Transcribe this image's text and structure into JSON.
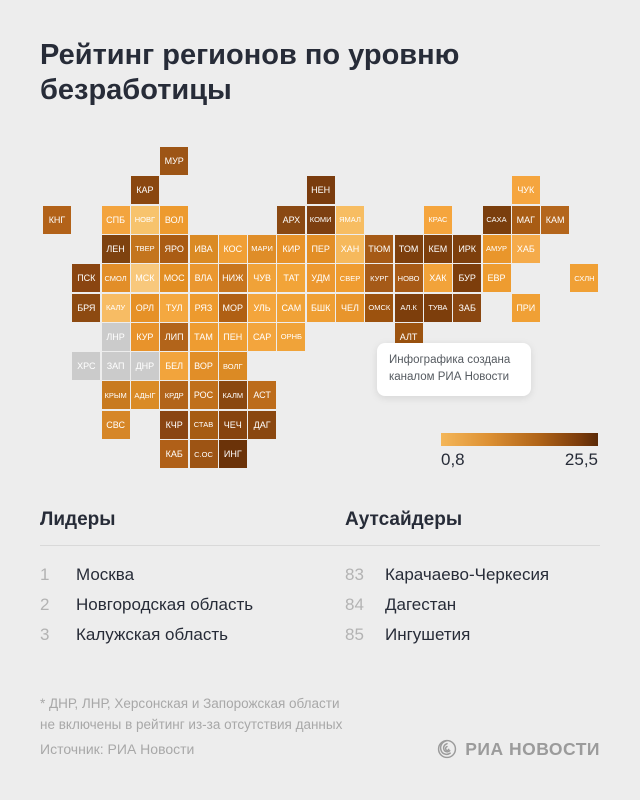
{
  "title": "Рейтинг регионов по уровню безработицы",
  "chart_data": {
    "type": "heatmap",
    "subtype": "tile-cartogram",
    "title": "Рейтинг регионов по уровню безработицы",
    "legend": {
      "min_label": "0,8",
      "max_label": "25,5",
      "range": [
        0.8,
        25.5
      ],
      "gradient": [
        "#f4b658",
        "#5a2a07"
      ],
      "no_data_color": "#cbcbcb"
    },
    "tiles": [
      {
        "label": "МУР",
        "row": 0,
        "col": 4,
        "color": "#9d5516"
      },
      {
        "label": "КАР",
        "row": 1,
        "col": 3,
        "color": "#8a470f"
      },
      {
        "label": "НЕН",
        "row": 1,
        "col": 9,
        "color": "#7a3c0e"
      },
      {
        "label": "ЧУК",
        "row": 1,
        "col": 16,
        "color": "#f5a53e"
      },
      {
        "label": "КНГ",
        "row": 2,
        "col": 0,
        "color": "#b26219"
      },
      {
        "label": "СПБ",
        "row": 2,
        "col": 2,
        "color": "#f3a43e"
      },
      {
        "label": "НОВГ",
        "row": 2,
        "col": 3,
        "color": "#f7c36c"
      },
      {
        "label": "ВОЛ",
        "row": 2,
        "col": 4,
        "color": "#ed9a2e"
      },
      {
        "label": "АРХ",
        "row": 2,
        "col": 8,
        "color": "#8a4913"
      },
      {
        "label": "КОМИ",
        "row": 2,
        "col": 9,
        "color": "#7d3f10"
      },
      {
        "label": "ЯМАЛ",
        "row": 2,
        "col": 10,
        "color": "#f7bd62"
      },
      {
        "label": "КРАС",
        "row": 2,
        "col": 13,
        "color": "#f5a53d"
      },
      {
        "label": "САХА",
        "row": 2,
        "col": 15,
        "color": "#7a3e0d"
      },
      {
        "label": "МАГ",
        "row": 2,
        "col": 16,
        "color": "#a85c14"
      },
      {
        "label": "КАМ",
        "row": 2,
        "col": 17,
        "color": "#b4661c"
      },
      {
        "label": "ЛЕН",
        "row": 3,
        "col": 2,
        "color": "#7e420f"
      },
      {
        "label": "ТВЕР",
        "row": 3,
        "col": 3,
        "color": "#c4751e"
      },
      {
        "label": "ЯРО",
        "row": 3,
        "col": 4,
        "color": "#aa5c14"
      },
      {
        "label": "ИВА",
        "row": 3,
        "col": 5,
        "color": "#da8a24"
      },
      {
        "label": "КОС",
        "row": 3,
        "col": 6,
        "color": "#f09f35"
      },
      {
        "label": "МАРИ",
        "row": 3,
        "col": 7,
        "color": "#df8d28"
      },
      {
        "label": "КИР",
        "row": 3,
        "col": 8,
        "color": "#e8932a"
      },
      {
        "label": "ПЕР",
        "row": 3,
        "col": 9,
        "color": "#e28e26"
      },
      {
        "label": "ХАН",
        "row": 3,
        "col": 10,
        "color": "#f6b95c"
      },
      {
        "label": "ТЮМ",
        "row": 3,
        "col": 11,
        "color": "#a65a16"
      },
      {
        "label": "ТОМ",
        "row": 3,
        "col": 12,
        "color": "#7d3f0d"
      },
      {
        "label": "КЕМ",
        "row": 3,
        "col": 13,
        "color": "#7d3f0d"
      },
      {
        "label": "ИРК",
        "row": 3,
        "col": 14,
        "color": "#7d3f0d"
      },
      {
        "label": "АМУР",
        "row": 3,
        "col": 15,
        "color": "#e9962b"
      },
      {
        "label": "ХАБ",
        "row": 3,
        "col": 16,
        "color": "#f5ab4a"
      },
      {
        "label": "ПСК",
        "row": 4,
        "col": 1,
        "color": "#8a4511"
      },
      {
        "label": "СМОЛ",
        "row": 4,
        "col": 2,
        "color": "#e28e28"
      },
      {
        "label": "МСК",
        "row": 4,
        "col": 3,
        "color": "#f8c87c"
      },
      {
        "label": "МОС",
        "row": 4,
        "col": 4,
        "color": "#e28e23"
      },
      {
        "label": "ВЛА",
        "row": 4,
        "col": 5,
        "color": "#ea9730"
      },
      {
        "label": "НИЖ",
        "row": 4,
        "col": 6,
        "color": "#c8761e"
      },
      {
        "label": "ЧУВ",
        "row": 4,
        "col": 7,
        "color": "#f0a238"
      },
      {
        "label": "ТАТ",
        "row": 4,
        "col": 8,
        "color": "#f2a438"
      },
      {
        "label": "УДМ",
        "row": 4,
        "col": 9,
        "color": "#ec9830"
      },
      {
        "label": "СВЕР",
        "row": 4,
        "col": 10,
        "color": "#ef9c30"
      },
      {
        "label": "КУРГ",
        "row": 4,
        "col": 11,
        "color": "#a55a18"
      },
      {
        "label": "НОВО",
        "row": 4,
        "col": 12,
        "color": "#a75a16"
      },
      {
        "label": "ХАК",
        "row": 4,
        "col": 13,
        "color": "#f2a33a"
      },
      {
        "label": "БУР",
        "row": 4,
        "col": 14,
        "color": "#7d3e0c"
      },
      {
        "label": "ЕВР",
        "row": 4,
        "col": 15,
        "color": "#ee9c30"
      },
      {
        "label": "СХЛН",
        "row": 4,
        "col": 18,
        "color": "#f0a035"
      },
      {
        "label": "БРЯ",
        "row": 5,
        "col": 1,
        "color": "#8d4a11"
      },
      {
        "label": "КАЛУ",
        "row": 5,
        "col": 2,
        "color": "#f7bc64"
      },
      {
        "label": "ОРЛ",
        "row": 5,
        "col": 3,
        "color": "#e69127"
      },
      {
        "label": "ТУЛ",
        "row": 5,
        "col": 4,
        "color": "#f4a840"
      },
      {
        "label": "РЯЗ",
        "row": 5,
        "col": 5,
        "color": "#ed9a2e"
      },
      {
        "label": "МОР",
        "row": 5,
        "col": 6,
        "color": "#b06014"
      },
      {
        "label": "УЛЬ",
        "row": 5,
        "col": 7,
        "color": "#f4a53c"
      },
      {
        "label": "САМ",
        "row": 5,
        "col": 8,
        "color": "#f0a237"
      },
      {
        "label": "БШК",
        "row": 5,
        "col": 9,
        "color": "#ef9f34"
      },
      {
        "label": "ЧЕЛ",
        "row": 5,
        "col": 10,
        "color": "#e8952c"
      },
      {
        "label": "ОМСК",
        "row": 5,
        "col": 11,
        "color": "#9c520e"
      },
      {
        "label": "АЛ.К",
        "row": 5,
        "col": 12,
        "color": "#7d3e0c"
      },
      {
        "label": "ТУВА",
        "row": 5,
        "col": 13,
        "color": "#7d3e0c"
      },
      {
        "label": "ЗАБ",
        "row": 5,
        "col": 14,
        "color": "#8a4711"
      },
      {
        "label": "ПРИ",
        "row": 5,
        "col": 16,
        "color": "#f0a035"
      },
      {
        "label": "ЛНР",
        "row": 6,
        "col": 2,
        "color": "#cbcbcb"
      },
      {
        "label": "КУР",
        "row": 6,
        "col": 3,
        "color": "#e8932b"
      },
      {
        "label": "ЛИП",
        "row": 6,
        "col": 4,
        "color": "#b2641a"
      },
      {
        "label": "ТАМ",
        "row": 6,
        "col": 5,
        "color": "#ee9c31"
      },
      {
        "label": "ПЕН",
        "row": 6,
        "col": 6,
        "color": "#ef9e33"
      },
      {
        "label": "САР",
        "row": 6,
        "col": 7,
        "color": "#f3a53d"
      },
      {
        "label": "ОРНБ",
        "row": 6,
        "col": 8,
        "color": "#f0a339"
      },
      {
        "label": "АЛТ",
        "row": 6,
        "col": 12,
        "color": "#9c5310"
      },
      {
        "label": "ХРС",
        "row": 7,
        "col": 1,
        "color": "#cbcbcb"
      },
      {
        "label": "ЗАП",
        "row": 7,
        "col": 2,
        "color": "#cbcbcb"
      },
      {
        "label": "ДНР",
        "row": 7,
        "col": 3,
        "color": "#cbcbcb"
      },
      {
        "label": "БЕЛ",
        "row": 7,
        "col": 4,
        "color": "#f2a43c"
      },
      {
        "label": "ВОР",
        "row": 7,
        "col": 5,
        "color": "#e18e28"
      },
      {
        "label": "ВОЛГ",
        "row": 7,
        "col": 6,
        "color": "#db8a24"
      },
      {
        "label": "КРЫМ",
        "row": 8,
        "col": 2,
        "color": "#c87a1f"
      },
      {
        "label": "АДЫГ",
        "row": 8,
        "col": 3,
        "color": "#da8b26"
      },
      {
        "label": "КРДР",
        "row": 8,
        "col": 4,
        "color": "#b2641a"
      },
      {
        "label": "РОС",
        "row": 8,
        "col": 5,
        "color": "#c0701c"
      },
      {
        "label": "КАЛМ",
        "row": 8,
        "col": 6,
        "color": "#8a4810"
      },
      {
        "label": "АСТ",
        "row": 8,
        "col": 7,
        "color": "#bc6c1b"
      },
      {
        "label": "СВС",
        "row": 9,
        "col": 2,
        "color": "#d68627"
      },
      {
        "label": "КЧР",
        "row": 9,
        "col": 4,
        "color": "#8a4512"
      },
      {
        "label": "СТАВ",
        "row": 9,
        "col": 5,
        "color": "#a65c12"
      },
      {
        "label": "ЧЕЧ",
        "row": 9,
        "col": 6,
        "color": "#86430e"
      },
      {
        "label": "ДАГ",
        "row": 9,
        "col": 7,
        "color": "#8a4710"
      },
      {
        "label": "КАБ",
        "row": 10,
        "col": 4,
        "color": "#b06018"
      },
      {
        "label": "С.ОС",
        "row": 10,
        "col": 5,
        "color": "#9d5414"
      },
      {
        "label": "ИНГ",
        "row": 10,
        "col": 6,
        "color": "#6b3309"
      }
    ]
  },
  "tooltip": {
    "text": "Инфографика создана каналом РИА Новости"
  },
  "legend": {
    "min_label": "0,8",
    "max_label": "25,5"
  },
  "leaders": {
    "title": "Лидеры",
    "items": [
      {
        "rank": "1",
        "name": "Москва"
      },
      {
        "rank": "2",
        "name": "Новгородская область"
      },
      {
        "rank": "3",
        "name": "Калужская область"
      }
    ]
  },
  "outsiders": {
    "title": "Аутсайдеры",
    "items": [
      {
        "rank": "83",
        "name": "Карачаево-Черкесия"
      },
      {
        "rank": "84",
        "name": "Дагестан"
      },
      {
        "rank": "85",
        "name": "Ингушетия"
      }
    ]
  },
  "footnote_line1": "* ДНР, ЛНР, Херсонская и Запорожская области",
  "footnote_line2": "не включены в рейтинг из-за отсутствия данных",
  "source": "Источник: РИА Новости",
  "brand": "РИА НОВОСТИ"
}
